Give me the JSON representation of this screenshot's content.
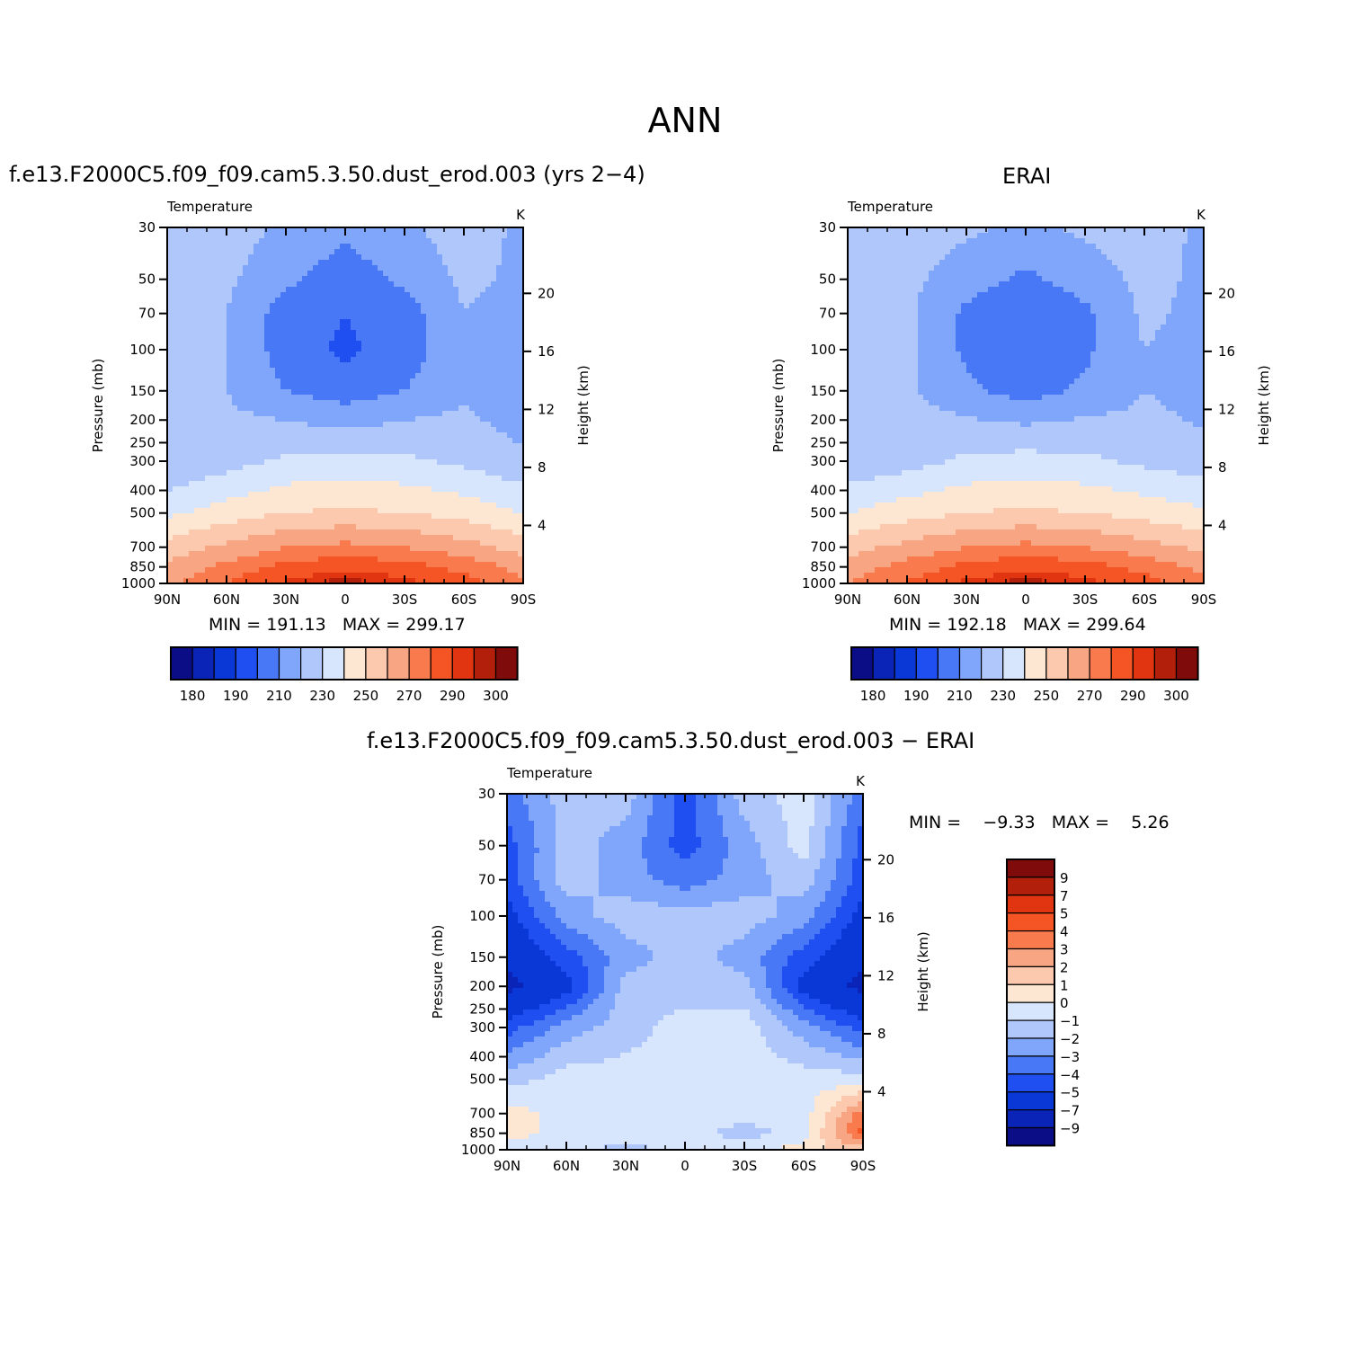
{
  "suptitle": "ANN",
  "colors": {
    "abs_levels": [
      "#0a0d85",
      "#0a24b8",
      "#0a38d6",
      "#1f4ff0",
      "#4878f5",
      "#7fa6fa",
      "#b0c7fb",
      "#d7e6fd",
      "#fde7d2",
      "#fdc9ae",
      "#f7a583",
      "#f97b4d",
      "#f55525",
      "#e03510",
      "#b2200b",
      "#800b0b"
    ],
    "diff_levels": [
      "#0a0d85",
      "#0a24b8",
      "#0a38d6",
      "#1f4ff0",
      "#4878f5",
      "#7fa6fa",
      "#b0c7fb",
      "#d7e6fd",
      "#fde7d2",
      "#fdc9ae",
      "#f7a583",
      "#f97b4d",
      "#f55525",
      "#e03510",
      "#b2200b",
      "#800b0b"
    ]
  },
  "panels": [
    {
      "id": "model",
      "title": "f.e13.F2000C5.f09_f09.cam5.3.50.dust_erod.003 (yrs 2−4)",
      "left_label": "Temperature",
      "right_label": "K",
      "ylabel": "Pressure (mb)",
      "y2label": "Height (km)",
      "min_label": "MIN =",
      "min_value": "191.13",
      "max_label": "MAX =",
      "max_value": "299.17",
      "colorbar_labels": [
        "180",
        "190",
        "210",
        "230",
        "250",
        "270",
        "290",
        "300"
      ]
    },
    {
      "id": "obs",
      "title": "ERAI",
      "left_label": "Temperature",
      "right_label": "K",
      "ylabel": "Pressure (mb)",
      "y2label": "Height (km)",
      "min_label": "MIN =",
      "min_value": "192.18",
      "max_label": "MAX =",
      "max_value": "299.64",
      "colorbar_labels": [
        "180",
        "190",
        "210",
        "230",
        "250",
        "270",
        "290",
        "300"
      ]
    },
    {
      "id": "diff",
      "title": "f.e13.F2000C5.f09_f09.cam5.3.50.dust_erod.003 − ERAI",
      "left_label": "Temperature",
      "right_label": "K",
      "ylabel": "Pressure (mb)",
      "y2label": "Height (km)",
      "min_label": "MIN =",
      "min_value": "−9.33",
      "max_label": "MAX =",
      "max_value": "5.26",
      "colorbar_labels": [
        "9",
        "7",
        "5",
        "4",
        "3",
        "2",
        "1",
        "0",
        "−1",
        "−2",
        "−3",
        "−4",
        "−5",
        "−7",
        "−9"
      ]
    }
  ],
  "chart_data": [
    {
      "type": "heatmap",
      "title": "f.e13.F2000C5.f09_f09.cam5.3.50.dust_erod.003 (yrs 2−4)",
      "variable": "Temperature",
      "units": "K",
      "x_ticks": [
        "90N",
        "60N",
        "30N",
        "0",
        "30S",
        "60S",
        "90S"
      ],
      "y_ticks": [
        "30",
        "50",
        "70",
        "100",
        "150",
        "200",
        "250",
        "300",
        "400",
        "500",
        "700",
        "850",
        "1000"
      ],
      "y_scale": "log",
      "y_range": [
        1000,
        30
      ],
      "y2_ticks": [
        "4",
        "8",
        "12",
        "16",
        "20"
      ],
      "contour_levels": [
        180,
        185,
        190,
        200,
        210,
        220,
        230,
        240,
        250,
        260,
        270,
        280,
        290,
        295,
        300
      ],
      "min": 191.13,
      "max": 299.17,
      "lat": [
        90,
        60,
        30,
        0,
        -30,
        -60,
        -90
      ],
      "levels_mb": [
        30,
        50,
        70,
        100,
        150,
        200,
        300,
        500,
        700,
        850,
        1000
      ],
      "values": [
        [
          225,
          225,
          218,
          212,
          218,
          225,
          218
        ],
        [
          225,
          222,
          212,
          205,
          212,
          222,
          218
        ],
        [
          225,
          220,
          205,
          200,
          205,
          220,
          216
        ],
        [
          225,
          220,
          205,
          198,
          205,
          218,
          215
        ],
        [
          225,
          220,
          210,
          205,
          210,
          218,
          216
        ],
        [
          222,
          222,
          220,
          216,
          220,
          222,
          216
        ],
        [
          220,
          226,
          232,
          234,
          232,
          228,
          222
        ],
        [
          238,
          245,
          250,
          252,
          250,
          246,
          240
        ],
        [
          254,
          262,
          270,
          273,
          270,
          264,
          256
        ],
        [
          262,
          273,
          283,
          288,
          284,
          277,
          266
        ],
        [
          268,
          280,
          292,
          298,
          293,
          284,
          272
        ]
      ]
    },
    {
      "type": "heatmap",
      "title": "ERAI",
      "variable": "Temperature",
      "units": "K",
      "x_ticks": [
        "90N",
        "60N",
        "30N",
        "0",
        "30S",
        "60S",
        "90S"
      ],
      "y_ticks": [
        "30",
        "50",
        "70",
        "100",
        "150",
        "200",
        "250",
        "300",
        "400",
        "500",
        "700",
        "850",
        "1000"
      ],
      "y_scale": "log",
      "y_range": [
        1000,
        30
      ],
      "y2_ticks": [
        "4",
        "8",
        "12",
        "16",
        "20"
      ],
      "contour_levels": [
        180,
        185,
        190,
        200,
        210,
        220,
        230,
        240,
        250,
        260,
        270,
        280,
        290,
        295,
        300
      ],
      "min": 192.18,
      "max": 299.64,
      "lat": [
        90,
        60,
        30,
        0,
        -30,
        -60,
        -90
      ],
      "levels_mb": [
        30,
        50,
        70,
        100,
        150,
        200,
        300,
        500,
        700,
        850,
        1000
      ],
      "values": [
        [
          225,
          225,
          222,
          218,
          222,
          225,
          218
        ],
        [
          225,
          223,
          214,
          208,
          214,
          223,
          218
        ],
        [
          225,
          222,
          208,
          202,
          208,
          222,
          217
        ],
        [
          226,
          222,
          208,
          200,
          208,
          220,
          216
        ],
        [
          228,
          222,
          212,
          206,
          212,
          220,
          217
        ],
        [
          226,
          224,
          221,
          218,
          221,
          222,
          219
        ],
        [
          222,
          226,
          232,
          234,
          232,
          228,
          224
        ],
        [
          240,
          246,
          250,
          252,
          250,
          246,
          242
        ],
        [
          256,
          263,
          270,
          273,
          270,
          264,
          258
        ],
        [
          264,
          274,
          283,
          288,
          284,
          277,
          267
        ],
        [
          270,
          281,
          292,
          298,
          293,
          284,
          272
        ]
      ]
    },
    {
      "type": "heatmap",
      "title": "f.e13.F2000C5.f09_f09.cam5.3.50.dust_erod.003 − ERAI",
      "variable": "Temperature",
      "units": "K",
      "x_ticks": [
        "90N",
        "60N",
        "30N",
        "0",
        "30S",
        "60S",
        "90S"
      ],
      "y_ticks": [
        "30",
        "50",
        "70",
        "100",
        "150",
        "200",
        "250",
        "300",
        "400",
        "500",
        "700",
        "850",
        "1000"
      ],
      "y_scale": "log",
      "y_range": [
        1000,
        30
      ],
      "y2_ticks": [
        "4",
        "8",
        "12",
        "16",
        "20"
      ],
      "contour_levels": [
        -9,
        -7,
        -5,
        -4,
        -3,
        -2,
        -1,
        0,
        1,
        2,
        3,
        4,
        5,
        7,
        9
      ],
      "min": -9.33,
      "max": 5.26,
      "lat": [
        90,
        60,
        30,
        0,
        -30,
        -60,
        -90
      ],
      "levels_mb": [
        30,
        50,
        70,
        100,
        150,
        200,
        300,
        500,
        700,
        850,
        1000
      ],
      "values": [
        [
          -3.5,
          -1.5,
          -1.5,
          -4.5,
          -1.5,
          -0.5,
          -3.5
        ],
        [
          -4.5,
          -1.5,
          -2.5,
          -4.5,
          -2.5,
          -0.5,
          -4.5
        ],
        [
          -4.5,
          -1.5,
          -2.5,
          -3.5,
          -2.5,
          -1.5,
          -4.5
        ],
        [
          -5.5,
          -2.5,
          -1.5,
          -1.5,
          -1.5,
          -2.5,
          -5.5
        ],
        [
          -6.5,
          -4.5,
          -2.5,
          -1.5,
          -2.5,
          -4.5,
          -6.5
        ],
        [
          -7.5,
          -5.5,
          -1.5,
          -1.5,
          -1.5,
          -5.5,
          -7.5
        ],
        [
          -4.5,
          -2.5,
          -1.5,
          -0.5,
          -0.5,
          -2.5,
          -4.5
        ],
        [
          -1.5,
          -0.5,
          -0.5,
          -0.5,
          -0.5,
          -0.5,
          -0.5
        ],
        [
          0.5,
          -0.5,
          -0.5,
          -0.5,
          -0.5,
          -0.5,
          3.5
        ],
        [
          0.5,
          -0.5,
          -0.5,
          -0.5,
          -1.5,
          -0.5,
          4.5
        ],
        [
          -0.5,
          -0.5,
          -1.5,
          -0.5,
          -0.5,
          0.5,
          1.5
        ]
      ]
    }
  ]
}
